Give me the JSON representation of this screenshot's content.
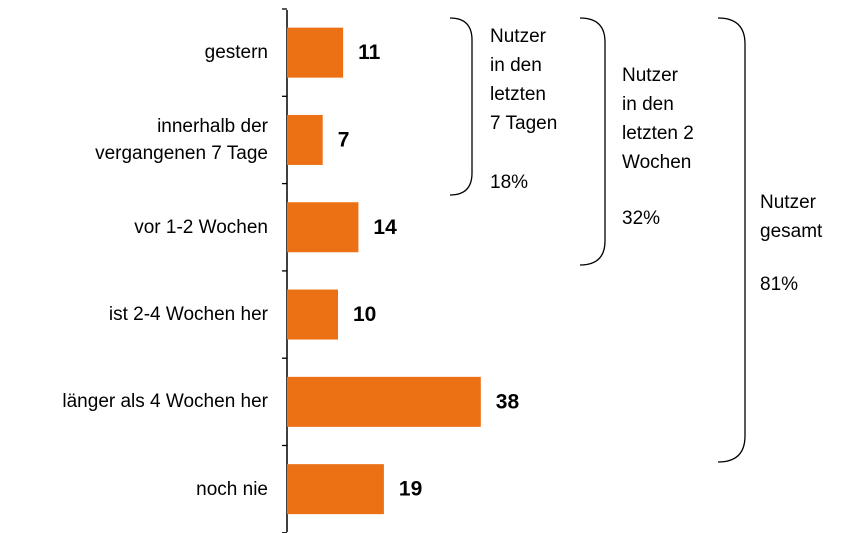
{
  "chart_data": {
    "type": "hbar",
    "categories": [
      "gestern",
      "innerhalb der vergangenen 7 Tage",
      "vor 1-2 Wochen",
      "ist 2-4 Wochen her",
      "länger als 4 Wochen her",
      "noch nie"
    ],
    "values": [
      11,
      7,
      14,
      10,
      38,
      19
    ],
    "color": "#ec7014",
    "annotations": [
      {
        "lines": [
          "Nutzer",
          "in den",
          "letzten",
          "7 Tagen"
        ],
        "share": "18%"
      },
      {
        "lines": [
          "Nutzer",
          "in den",
          "letzten 2",
          "Wochen"
        ],
        "share": "32%"
      },
      {
        "lines": [
          "Nutzer",
          "gesamt"
        ],
        "share": "81%"
      }
    ]
  }
}
